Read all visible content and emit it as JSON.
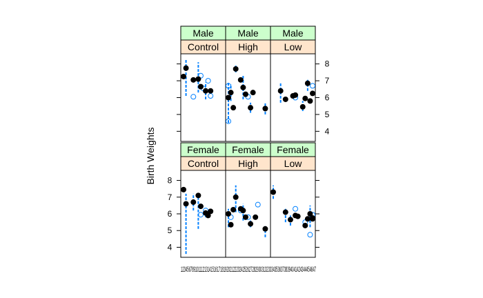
{
  "chart_data": {
    "type": "scatter",
    "ylabel": "Birth Weights",
    "ylim": [
      3.4,
      8.6
    ],
    "y_ticks": [
      4,
      5,
      6,
      7,
      8
    ],
    "x_tick_labels": "1234567891011121314151617181920212223242526272829303132333435363738394041424344454647",
    "colors": {
      "strip_sex": "#ccffcc",
      "strip_dose": "#ffe5cc",
      "points": "#000000",
      "open_points": "#0080ff",
      "error_bars": "#0080ff"
    },
    "panels": [
      {
        "sex": "Male",
        "dose": "Control",
        "row": "top",
        "col": 0,
        "mean_points": [
          [
            1,
            7.25
          ],
          [
            2,
            7.75
          ],
          [
            5,
            7.05
          ],
          [
            7,
            7.1
          ],
          [
            8,
            6.65
          ],
          [
            10,
            6.4
          ],
          [
            12,
            6.4
          ]
        ],
        "open_points": [
          [
            5,
            6.05
          ],
          [
            8,
            7.3
          ],
          [
            9,
            6.55
          ],
          [
            11,
            7.0
          ],
          [
            12,
            6.1
          ]
        ],
        "error_bars": [
          [
            2,
            6.1,
            8.3
          ],
          [
            7,
            6.3,
            8.1
          ],
          [
            10,
            5.9,
            6.9
          ]
        ]
      },
      {
        "sex": "Male",
        "dose": "High",
        "row": "top",
        "col": 1,
        "mean_points": [
          [
            1,
            6.0
          ],
          [
            2,
            6.3
          ],
          [
            3,
            5.4
          ],
          [
            4,
            7.7
          ],
          [
            6,
            7.05
          ],
          [
            7,
            6.6
          ],
          [
            8,
            6.2
          ],
          [
            10,
            5.4
          ],
          [
            11,
            6.3
          ],
          [
            16,
            5.35
          ]
        ],
        "open_points": [
          [
            1,
            6.7
          ],
          [
            1,
            4.6
          ],
          [
            9,
            6.05
          ]
        ],
        "error_bars": [
          [
            1,
            4.5,
            6.9
          ],
          [
            2,
            5.8,
            6.8
          ],
          [
            4,
            7.5,
            7.9
          ],
          [
            7,
            5.9,
            7.3
          ],
          [
            10,
            5.1,
            5.7
          ],
          [
            16,
            5.0,
            5.7
          ]
        ]
      },
      {
        "sex": "Male",
        "dose": "Low",
        "row": "top",
        "col": 2,
        "mean_points": [
          [
            4,
            6.4
          ],
          [
            6,
            5.9
          ],
          [
            9,
            6.1
          ],
          [
            10,
            6.15
          ],
          [
            13,
            5.45
          ],
          [
            14,
            5.95
          ],
          [
            15,
            6.85
          ],
          [
            16,
            5.8
          ],
          [
            17,
            6.25
          ]
        ],
        "open_points": [
          [
            10,
            6.0
          ],
          [
            17,
            6.7
          ]
        ],
        "error_bars": [
          [
            4,
            5.7,
            6.9
          ],
          [
            13,
            5.2,
            5.8
          ],
          [
            15,
            6.4,
            7.1
          ]
        ]
      },
      {
        "sex": "Female",
        "dose": "Control",
        "row": "bottom",
        "col": 0,
        "mean_points": [
          [
            1,
            7.45
          ],
          [
            2,
            6.6
          ],
          [
            5,
            6.7
          ],
          [
            7,
            7.1
          ],
          [
            8,
            6.45
          ],
          [
            10,
            6.05
          ],
          [
            11,
            5.9
          ],
          [
            12,
            6.15
          ]
        ],
        "open_points": [
          [
            8,
            5.95
          ],
          [
            10,
            6.2
          ]
        ],
        "error_bars": [
          [
            2,
            3.6,
            7.2
          ],
          [
            5,
            6.2,
            7.2
          ],
          [
            7,
            5.1,
            7.3
          ],
          [
            10,
            5.8,
            6.3
          ]
        ]
      },
      {
        "sex": "Female",
        "dose": "High",
        "row": "bottom",
        "col": 1,
        "mean_points": [
          [
            1,
            6.0
          ],
          [
            2,
            5.35
          ],
          [
            3,
            6.25
          ],
          [
            4,
            7.0
          ],
          [
            6,
            6.3
          ],
          [
            7,
            6.2
          ],
          [
            8,
            5.8
          ],
          [
            10,
            5.4
          ],
          [
            12,
            5.8
          ],
          [
            16,
            5.1
          ]
        ],
        "open_points": [
          [
            2,
            5.8
          ],
          [
            6,
            6.2
          ],
          [
            9,
            5.8
          ],
          [
            13,
            6.55
          ]
        ],
        "error_bars": [
          [
            1,
            5.2,
            6.3
          ],
          [
            4,
            6.1,
            7.7
          ],
          [
            7,
            5.6,
            6.6
          ],
          [
            10,
            5.2,
            5.6
          ],
          [
            16,
            4.6,
            5.3
          ]
        ]
      },
      {
        "sex": "Female",
        "dose": "Low",
        "row": "bottom",
        "col": 2,
        "mean_points": [
          [
            1,
            7.3
          ],
          [
            6,
            6.1
          ],
          [
            8,
            5.65
          ],
          [
            10,
            5.9
          ],
          [
            11,
            5.85
          ],
          [
            14,
            5.3
          ],
          [
            15,
            5.7
          ],
          [
            16,
            6.0
          ],
          [
            17,
            5.7
          ],
          [
            17,
            5.75
          ]
        ],
        "open_points": [
          [
            10,
            6.3
          ],
          [
            14,
            5.5
          ],
          [
            16,
            4.75
          ],
          [
            17,
            5.95
          ]
        ],
        "error_bars": [
          [
            1,
            6.9,
            7.7
          ],
          [
            6,
            5.5,
            6.3
          ],
          [
            8,
            5.3,
            5.9
          ],
          [
            16,
            5.2,
            6.5
          ]
        ]
      }
    ]
  }
}
